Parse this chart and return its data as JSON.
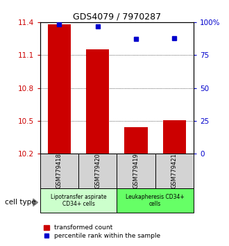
{
  "title": "GDS4079 / 7970287",
  "samples": [
    "GSM779418",
    "GSM779420",
    "GSM779419",
    "GSM779421"
  ],
  "bar_values": [
    11.38,
    11.15,
    10.44,
    10.505
  ],
  "percentile_values": [
    98.5,
    96.5,
    87.5,
    88.0
  ],
  "ylim_left": [
    10.2,
    11.4
  ],
  "ylim_right": [
    0,
    100
  ],
  "yticks_left": [
    10.2,
    10.5,
    10.8,
    11.1,
    11.4
  ],
  "ytick_labels_left": [
    "10.2",
    "10.5",
    "10.8",
    "11.1",
    "11.4"
  ],
  "yticks_right": [
    0,
    25,
    50,
    75,
    100
  ],
  "ytick_labels_right": [
    "0",
    "25",
    "50",
    "75",
    "100%"
  ],
  "bar_color": "#cc0000",
  "scatter_color": "#0000cc",
  "group1_label": "Lipotransfer aspirate\nCD34+ cells",
  "group2_label": "Leukapheresis CD34+\ncells",
  "group1_bg": "#ccffcc",
  "group2_bg": "#66ff66",
  "sample_bg": "#d3d3d3",
  "cell_type_label": "cell type",
  "legend_bar_label": "transformed count",
  "legend_scatter_label": "percentile rank within the sample",
  "title_fontsize": 9,
  "tick_fontsize": 7.5,
  "label_fontsize": 6.5
}
